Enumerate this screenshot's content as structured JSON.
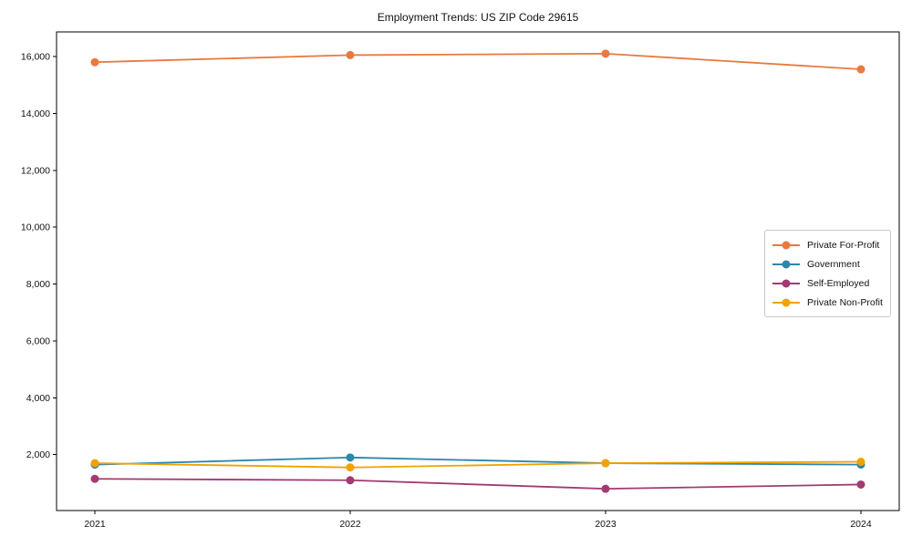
{
  "chart_data": {
    "type": "line",
    "title": "Employment Trends: US ZIP Code 29615",
    "x": [
      2021,
      2022,
      2023,
      2024
    ],
    "xtick_labels": [
      "2021",
      "2022",
      "2023",
      "2024"
    ],
    "series": [
      {
        "name": "Private For-Profit",
        "color": "#E8793F",
        "values": [
          15800,
          16050,
          16100,
          15550
        ]
      },
      {
        "name": "Government",
        "color": "#2E86AB",
        "values": [
          1650,
          1900,
          1700,
          1650
        ]
      },
      {
        "name": "Self-Employed",
        "color": "#A23B72",
        "values": [
          1150,
          1100,
          800,
          950
        ]
      },
      {
        "name": "Private Non-Profit",
        "color": "#F0A202",
        "values": [
          1700,
          1550,
          1700,
          1750
        ]
      }
    ],
    "xlabel": "",
    "ylabel": "",
    "xlim": [
      2020.85,
      2024.15
    ],
    "ylim": [
      35,
      16865
    ],
    "yticks": [
      2000,
      4000,
      6000,
      8000,
      10000,
      12000,
      14000,
      16000
    ],
    "ytick_labels": [
      "2,000",
      "4,000",
      "6,000",
      "8,000",
      "10,000",
      "12,000",
      "14,000",
      "16,000"
    ],
    "grid": false,
    "marker": "circle",
    "legend": {
      "position": "center-right",
      "entries": [
        "Private For-Profit",
        "Government",
        "Self-Employed",
        "Private Non-Profit"
      ]
    }
  }
}
